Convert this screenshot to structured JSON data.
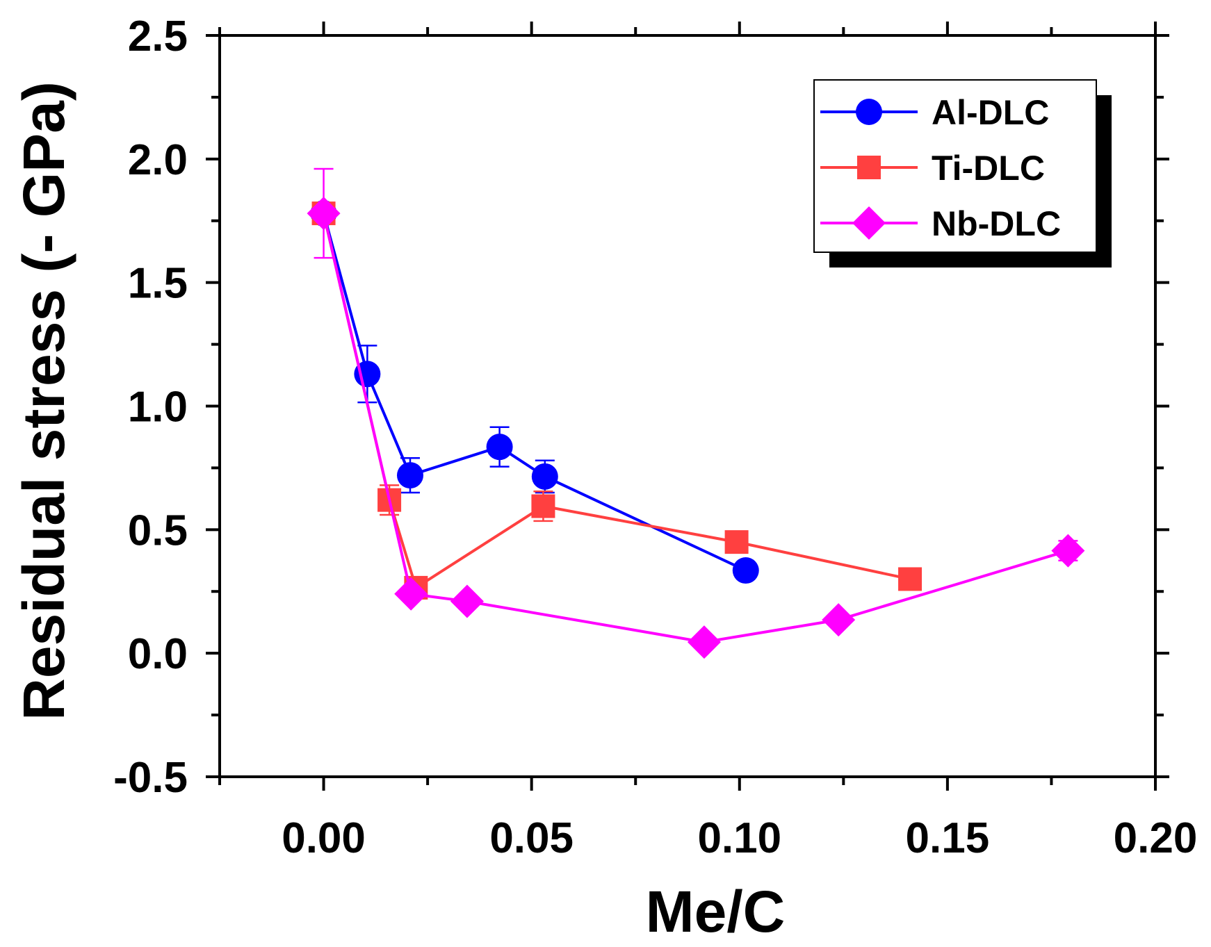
{
  "chart_data": {
    "type": "line",
    "title": "",
    "xlabel": "Me/C",
    "ylabel": "Residual stress (- GPa)",
    "xlim": [
      -0.025,
      0.2
    ],
    "ylim": [
      -0.5,
      2.5
    ],
    "x_ticks": [
      0.0,
      0.05,
      0.1,
      0.15,
      0.2
    ],
    "x_tick_labels": [
      "0.00",
      "0.05",
      "0.10",
      "0.15",
      "0.20"
    ],
    "x_minor_ticks": [
      -0.025,
      0.025,
      0.075,
      0.125,
      0.175
    ],
    "y_ticks": [
      -0.5,
      0.0,
      0.5,
      1.0,
      1.5,
      2.0,
      2.5
    ],
    "y_tick_labels": [
      "-0.5",
      "0.0",
      "0.5",
      "1.0",
      "1.5",
      "2.0",
      "2.5"
    ],
    "y_minor_ticks": [
      -0.25,
      0.25,
      0.75,
      1.25,
      1.75,
      2.25
    ],
    "grid": false,
    "legend_position": "top-right",
    "series": [
      {
        "name": "Al-DLC",
        "color": "#0000ff",
        "marker": "circle",
        "x": [
          0.0,
          0.0105,
          0.0208,
          0.0423,
          0.0532,
          0.1015
        ],
        "y": [
          1.78,
          1.13,
          0.72,
          0.835,
          0.715,
          0.335
        ],
        "err": [
          0.0,
          0.115,
          0.07,
          0.08,
          0.065,
          0.0
        ]
      },
      {
        "name": "Ti-DLC",
        "color": "#ff4040",
        "marker": "square",
        "x": [
          0.0,
          0.0158,
          0.0222,
          0.0528,
          0.0993,
          0.141
        ],
        "y": [
          1.78,
          0.62,
          0.265,
          0.595,
          0.45,
          0.3
        ],
        "err": [
          0.0,
          0.06,
          0.0,
          0.06,
          0.0,
          0.0
        ]
      },
      {
        "name": "Nb-DLC",
        "color": "#ff00ff",
        "marker": "diamond",
        "x": [
          0.0,
          0.021,
          0.0345,
          0.0915,
          0.1238,
          0.179
        ],
        "y": [
          1.78,
          0.24,
          0.21,
          0.045,
          0.135,
          0.415
        ],
        "err": [
          0.18,
          0.0,
          0.0,
          0.0,
          0.0,
          0.04
        ]
      }
    ]
  }
}
